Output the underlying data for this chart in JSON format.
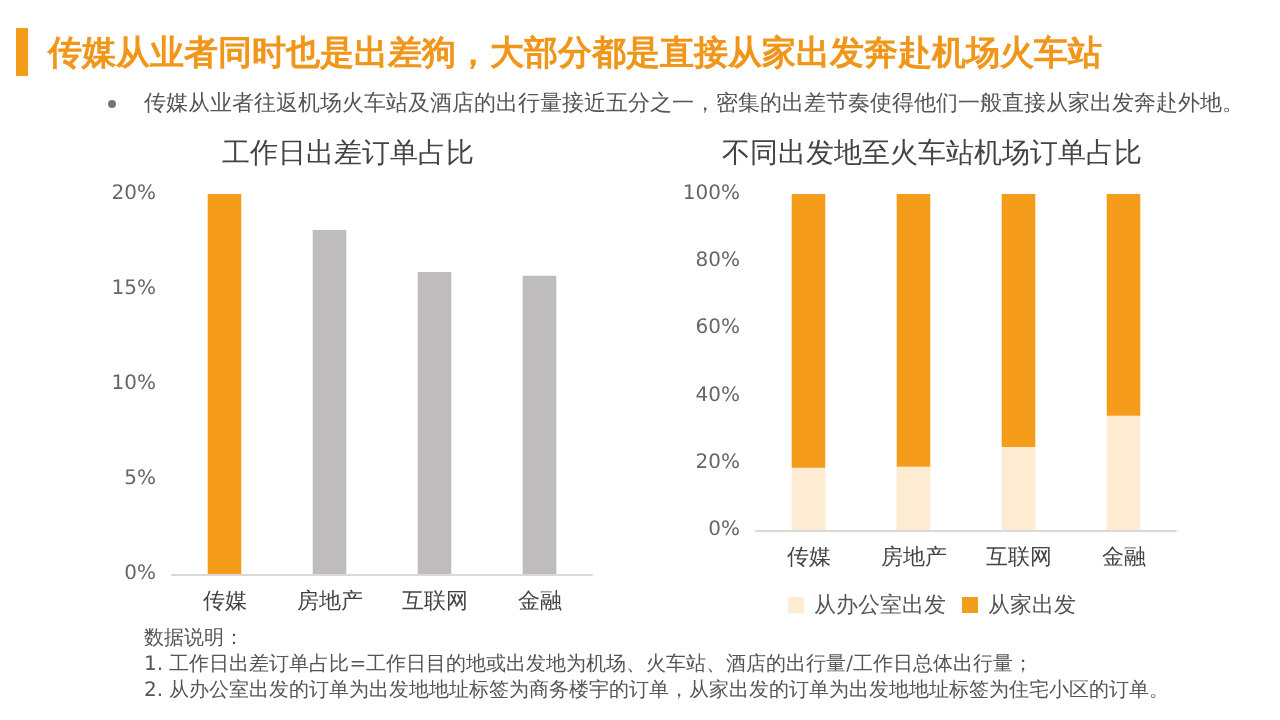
{
  "chart_data": [
    {
      "type": "other",
      "title": "传媒从业者同时也是出差狗，大部分都是直接从家出发奔赴机场火车站",
      "subtitle": "传媒从业者往返机场火车站及酒店的出行量接近五分之一，密集的出差节奏使得他们一般直接从家出发奔赴外地。"
    },
    {
      "type": "bar",
      "title": "工作日出差订单占比",
      "categories": [
        "传媒",
        "房地产",
        "互联网",
        "金融"
      ],
      "values": [
        20,
        18.1,
        15.9,
        15.7
      ],
      "colors": [
        "#f59d1b",
        "#bfbcbd",
        "#bfbcbd",
        "#bfbcbd"
      ],
      "ylim": [
        0,
        20
      ],
      "yticks": [
        {
          "value": 0,
          "label": "0%"
        },
        {
          "value": 5,
          "label": "5%"
        },
        {
          "value": 10,
          "label": "10%"
        },
        {
          "value": 15,
          "label": "15%"
        },
        {
          "value": 20,
          "label": "20%"
        }
      ]
    },
    {
      "type": "bar",
      "title": "不同出发地至火车站机场订单占比",
      "categories": [
        "传媒",
        "房地产",
        "互联网",
        "金融"
      ],
      "stacked": true,
      "legend": "bottom",
      "series": [
        {
          "name": "从办公室出发",
          "color": "#fdebd2",
          "values": [
            18.5,
            18.8,
            24.7,
            34
          ]
        },
        {
          "name": "从家出发",
          "color": "#f59d1b",
          "values": [
            81.5,
            81.2,
            75.3,
            66
          ]
        }
      ],
      "ylim": [
        0,
        100
      ],
      "yticks": [
        {
          "value": 0,
          "label": "0%"
        },
        {
          "value": 20,
          "label": "20%"
        },
        {
          "value": 40,
          "label": "40%"
        },
        {
          "value": 60,
          "label": "60%"
        },
        {
          "value": 80,
          "label": "80%"
        },
        {
          "value": 100,
          "label": "100%"
        }
      ]
    },
    {
      "type": "other",
      "annotations": [
        "数据说明：",
        "1. 工作日出差订单占比=工作日目的地或出发地为机场、火车站、酒店的出行量/工作日总体出行量；",
        "2. 从办公室出发的订单为出发地地址标签为商务楼宇的订单，从家出发的订单为出发地地址标签为住宅小区的订单。"
      ]
    }
  ]
}
